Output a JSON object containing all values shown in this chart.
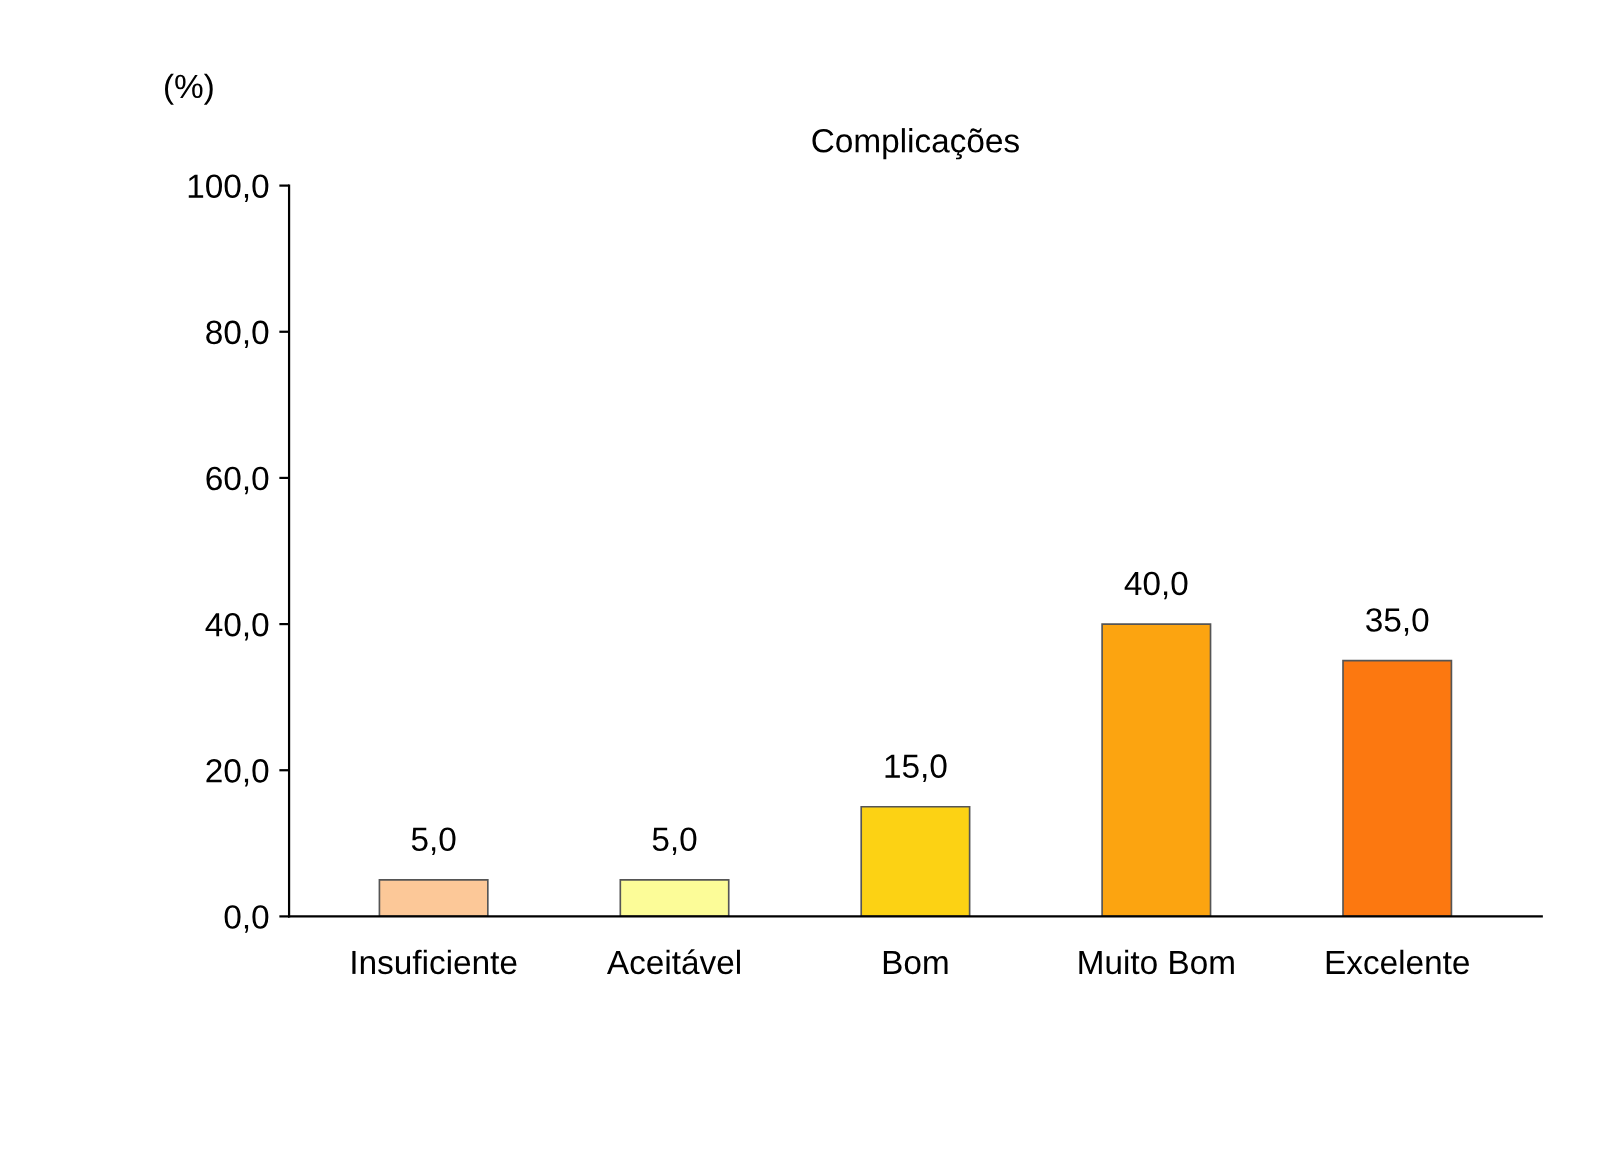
{
  "chart_data": {
    "type": "bar",
    "title": "Complicações",
    "ylabel": "(%)",
    "categories": [
      "Insuficiente",
      "Aceitável",
      "Bom",
      "Muito Bom",
      "Excelente"
    ],
    "values": [
      5,
      5,
      15,
      40,
      35
    ],
    "colors": [
      "#fcc898",
      "#fcfc98",
      "#fcd214",
      "#fca410",
      "#fc7810"
    ],
    "value_labels": [
      "5,0",
      "5,0",
      "15,0",
      "40,0",
      "35,0"
    ],
    "ylim": [
      0,
      100
    ],
    "yticks": [
      {
        "value": 0,
        "label": "0,0"
      },
      {
        "value": 20,
        "label": "20,0"
      },
      {
        "value": 40,
        "label": "40,0"
      },
      {
        "value": 60,
        "label": "60,0"
      },
      {
        "value": 80,
        "label": "80,0"
      },
      {
        "value": 100,
        "label": "100,0"
      }
    ],
    "grid": false,
    "legend": false
  }
}
